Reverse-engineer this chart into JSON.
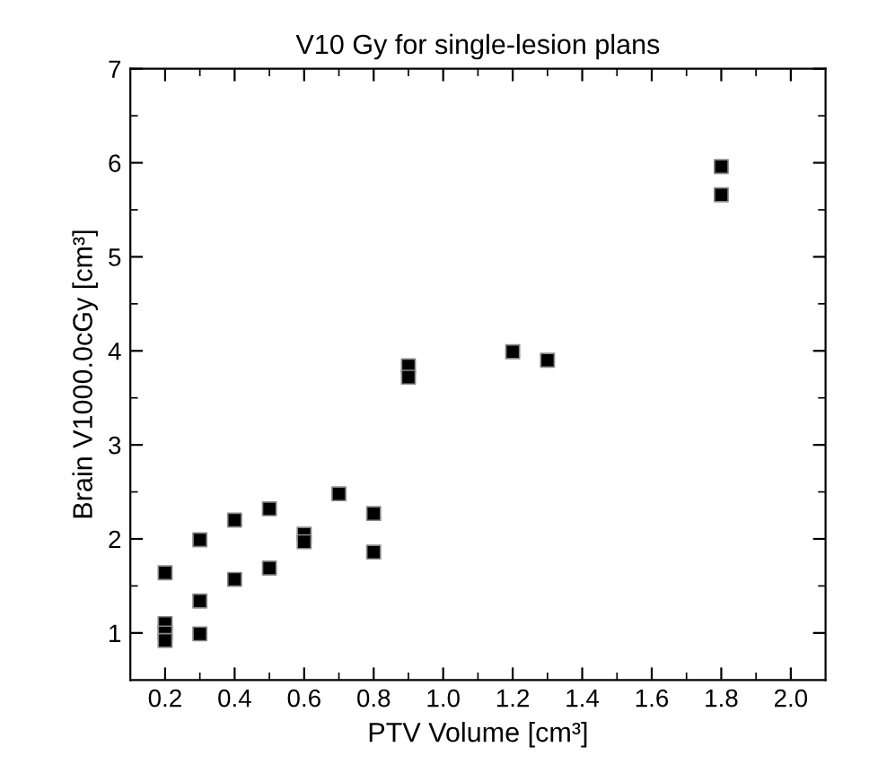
{
  "chart_data": {
    "type": "scatter",
    "title": "V10 Gy for single-lesion plans",
    "xlabel": "PTV Volume [cm³]",
    "ylabel": "Brain V1000.0cGy [cm³]",
    "series": [
      {
        "color": "#000000",
        "x": [
          0.2,
          0.2,
          0.2,
          0.2,
          0.3,
          0.3,
          0.3,
          0.4,
          0.4,
          0.5,
          0.5,
          0.6,
          0.6,
          0.7,
          0.8,
          0.8,
          0.9,
          0.9,
          1.2,
          1.3,
          1.8,
          1.8
        ],
        "values": [
          1.64,
          1.1,
          1.0,
          0.92,
          1.99,
          1.34,
          0.99,
          2.2,
          1.57,
          2.32,
          1.69,
          2.05,
          1.97,
          2.48,
          2.27,
          1.86,
          3.84,
          3.72,
          3.99,
          3.9,
          5.96,
          5.66
        ]
      }
    ],
    "marker": "square",
    "xlim": [
      0.1,
      2.1
    ],
    "ylim": [
      0.5,
      7
    ],
    "xticks": [
      0.2,
      0.4,
      0.6,
      0.8,
      "1.0",
      1.2,
      1.4,
      1.6,
      1.8,
      "2.0"
    ],
    "yticks": [
      1,
      {
        "value": 1.5,
        "label": null
      },
      2,
      {
        "value": 2.5,
        "label": null
      },
      3,
      {
        "value": 3.5,
        "label": null
      },
      4,
      {
        "value": 4.5,
        "label": null
      },
      5,
      {
        "value": 5.5,
        "label": null
      },
      6,
      {
        "value": 6.5,
        "label": null
      },
      7
    ],
    "grid": false,
    "legend": false
  }
}
